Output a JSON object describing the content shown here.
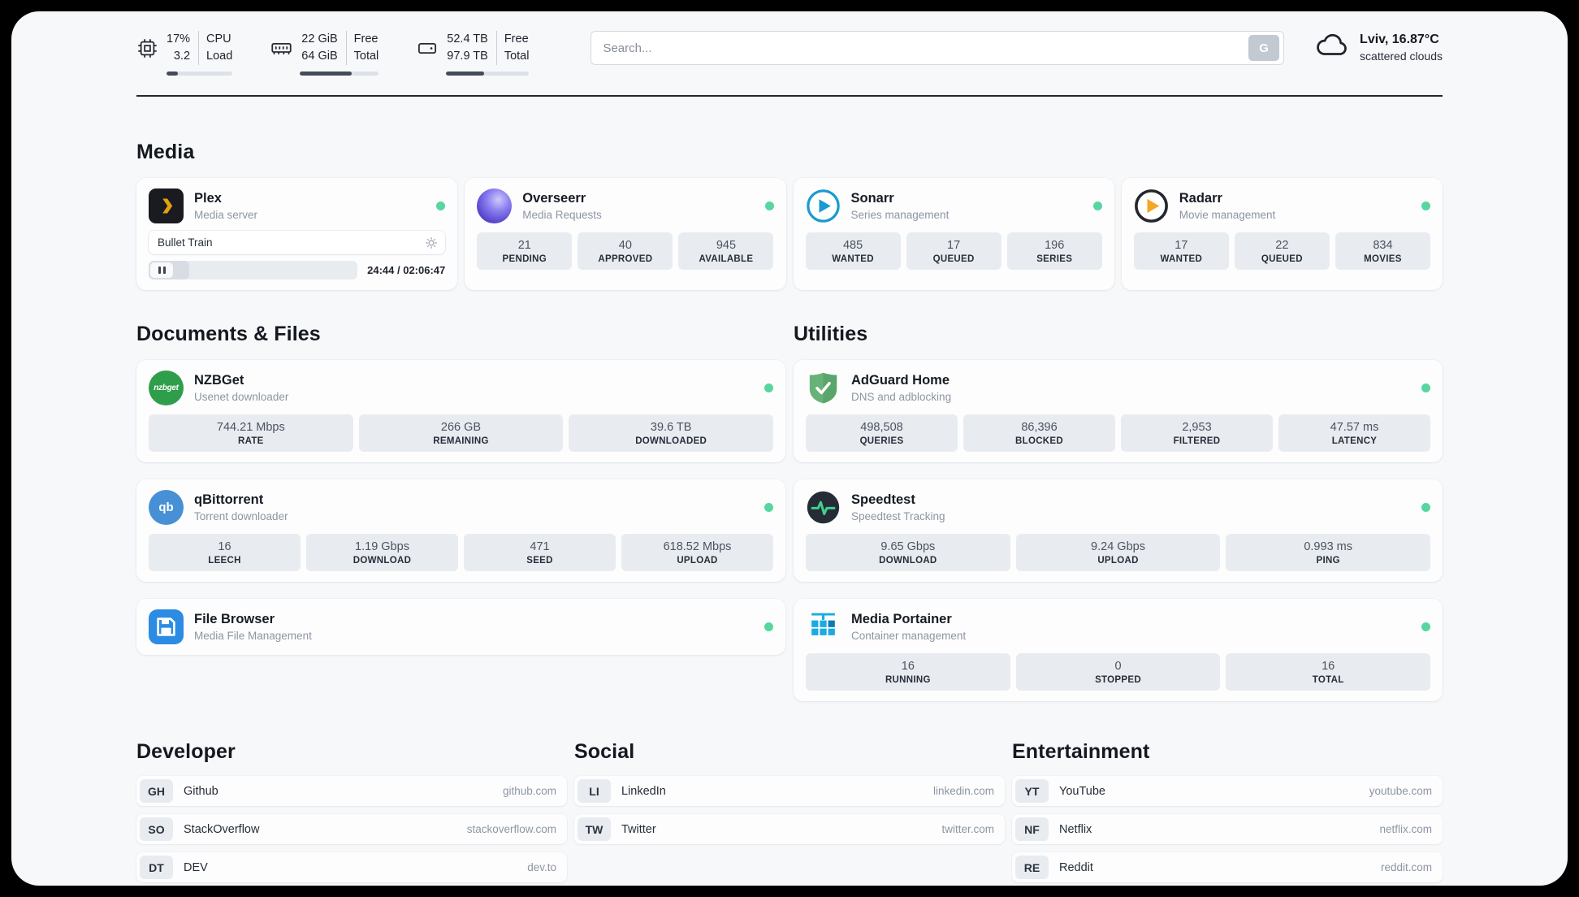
{
  "colors": {
    "status_online": "#57d6a0",
    "surface": "#f6f8fa",
    "card": "#fdfdfe",
    "stat_box": "#e8ecf1",
    "plex_accent": "#e5a00d"
  },
  "header": {
    "cpu": {
      "icon": "cpu-chip-icon",
      "usage": "17%",
      "load": "3.2",
      "label_top": "CPU",
      "label_bottom": "Load",
      "progress": 17
    },
    "ram": {
      "icon": "ram-icon",
      "free": "22 GiB",
      "total": "64 GiB",
      "label_top": "Free",
      "label_bottom": "Total",
      "progress": 66
    },
    "disk": {
      "icon": "disk-icon",
      "free": "52.4 TB",
      "total": "97.9 TB",
      "label_top": "Free",
      "label_bottom": "Total",
      "progress": 46
    },
    "search": {
      "placeholder": "Search...",
      "button_label": "G"
    },
    "weather": {
      "icon": "cloud-icon",
      "location": "Lviv, 16.87°C",
      "condition": "scattered clouds"
    }
  },
  "media": {
    "title": "Media",
    "plex": {
      "icon": "plex-icon",
      "name": "Plex",
      "subtitle": "Media server",
      "status": "online",
      "now_playing": "Bullet Train",
      "time": "24:44 / 02:06:47",
      "progress": 19.5
    },
    "overseerr": {
      "icon": "overseerr-icon",
      "name": "Overseerr",
      "subtitle": "Media Requests",
      "status": "online",
      "stats": [
        {
          "value": "21",
          "label": "PENDING"
        },
        {
          "value": "40",
          "label": "APPROVED"
        },
        {
          "value": "945",
          "label": "AVAILABLE"
        }
      ]
    },
    "sonarr": {
      "icon": "sonarr-icon",
      "name": "Sonarr",
      "subtitle": "Series management",
      "status": "online",
      "stats": [
        {
          "value": "485",
          "label": "WANTED"
        },
        {
          "value": "17",
          "label": "QUEUED"
        },
        {
          "value": "196",
          "label": "SERIES"
        }
      ]
    },
    "radarr": {
      "icon": "radarr-icon",
      "name": "Radarr",
      "subtitle": "Movie management",
      "status": "online",
      "stats": [
        {
          "value": "17",
          "label": "WANTED"
        },
        {
          "value": "22",
          "label": "QUEUED"
        },
        {
          "value": "834",
          "label": "MOVIES"
        }
      ]
    }
  },
  "files": {
    "title": "Documents & Files",
    "nzbget": {
      "icon": "nzbget-icon",
      "icon_text": "nzbget",
      "name": "NZBGet",
      "subtitle": "Usenet downloader",
      "status": "online",
      "stats": [
        {
          "value": "744.21 Mbps",
          "label": "RATE"
        },
        {
          "value": "266 GB",
          "label": "REMAINING"
        },
        {
          "value": "39.6 TB",
          "label": "DOWNLOADED"
        }
      ]
    },
    "qbittorrent": {
      "icon": "qbittorrent-icon",
      "icon_text": "qb",
      "name": "qBittorrent",
      "subtitle": "Torrent downloader",
      "status": "online",
      "stats": [
        {
          "value": "16",
          "label": "LEECH"
        },
        {
          "value": "1.19 Gbps",
          "label": "DOWNLOAD"
        },
        {
          "value": "471",
          "label": "SEED"
        },
        {
          "value": "618.52 Mbps",
          "label": "UPLOAD"
        }
      ]
    },
    "filebrowser": {
      "icon": "filebrowser-icon",
      "name": "File Browser",
      "subtitle": "Media File Management",
      "status": "online"
    }
  },
  "utilities": {
    "title": "Utilities",
    "adguard": {
      "icon": "adguard-icon",
      "name": "AdGuard Home",
      "subtitle": "DNS and adblocking",
      "status": "online",
      "stats": [
        {
          "value": "498,508",
          "label": "QUERIES"
        },
        {
          "value": "86,396",
          "label": "BLOCKED"
        },
        {
          "value": "2,953",
          "label": "FILTERED"
        },
        {
          "value": "47.57 ms",
          "label": "LATENCY"
        }
      ]
    },
    "speedtest": {
      "icon": "speedtest-icon",
      "name": "Speedtest",
      "subtitle": "Speedtest Tracking",
      "status": "online",
      "stats": [
        {
          "value": "9.65 Gbps",
          "label": "DOWNLOAD"
        },
        {
          "value": "9.24 Gbps",
          "label": "UPLOAD"
        },
        {
          "value": "0.993 ms",
          "label": "PING"
        }
      ]
    },
    "portainer": {
      "icon": "portainer-icon",
      "name": "Media Portainer",
      "subtitle": "Container management",
      "status": "online",
      "stats": [
        {
          "value": "16",
          "label": "RUNNING"
        },
        {
          "value": "0",
          "label": "STOPPED"
        },
        {
          "value": "16",
          "label": "TOTAL"
        }
      ]
    }
  },
  "bookmarks": {
    "developer": {
      "title": "Developer",
      "links": [
        {
          "abbr": "GH",
          "name": "Github",
          "url": "github.com"
        },
        {
          "abbr": "SO",
          "name": "StackOverflow",
          "url": "stackoverflow.com"
        },
        {
          "abbr": "DT",
          "name": "DEV",
          "url": "dev.to"
        }
      ]
    },
    "social": {
      "title": "Social",
      "links": [
        {
          "abbr": "LI",
          "name": "LinkedIn",
          "url": "linkedin.com"
        },
        {
          "abbr": "TW",
          "name": "Twitter",
          "url": "twitter.com"
        }
      ]
    },
    "entertainment": {
      "title": "Entertainment",
      "links": [
        {
          "abbr": "YT",
          "name": "YouTube",
          "url": "youtube.com"
        },
        {
          "abbr": "NF",
          "name": "Netflix",
          "url": "netflix.com"
        },
        {
          "abbr": "RE",
          "name": "Reddit",
          "url": "reddit.com"
        }
      ]
    }
  }
}
